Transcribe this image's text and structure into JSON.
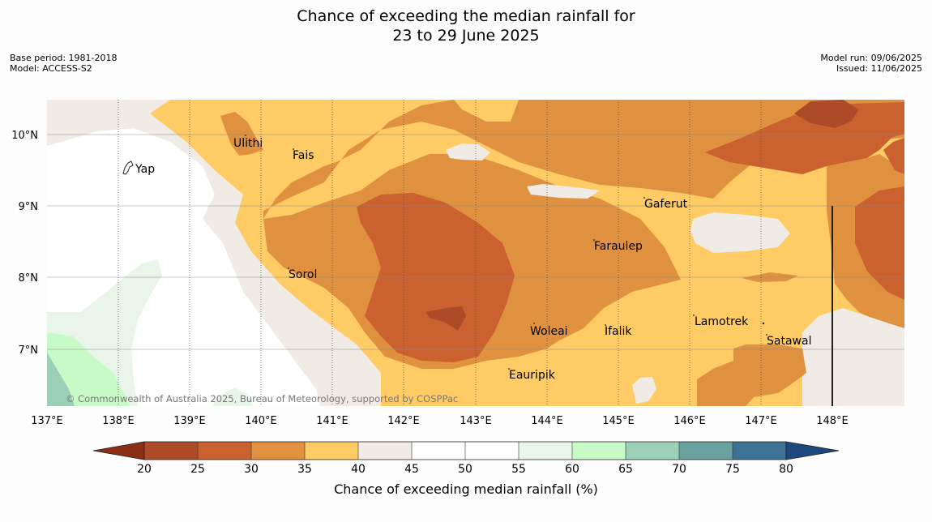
{
  "title_line1": "Chance of exceeding the median rainfall for",
  "title_line2": "23 to 29 June 2025",
  "meta_left": {
    "base_period": "Base period: 1981-2018",
    "model": "Model: ACCESS-S2"
  },
  "meta_right": {
    "model_run": "Model run: 09/06/2025",
    "issued": "Issued: 11/06/2025"
  },
  "map": {
    "lat_labels": [
      "10°N",
      "9°N",
      "8°N",
      "7°N"
    ],
    "lon_labels": [
      "137°E",
      "138°E",
      "139°E",
      "140°E",
      "141°E",
      "142°E",
      "143°E",
      "144°E",
      "145°E",
      "146°E",
      "147°E",
      "148°E"
    ],
    "places": [
      {
        "name": "Yap"
      },
      {
        "name": "Ulithi"
      },
      {
        "name": "Fais"
      },
      {
        "name": "Gaferut"
      },
      {
        "name": "Faraulep"
      },
      {
        "name": "Sorol"
      },
      {
        "name": "Woleai"
      },
      {
        "name": "Ifalik"
      },
      {
        "name": "Lamotrek"
      },
      {
        "name": "Satawal"
      },
      {
        "name": "Eauripik"
      }
    ],
    "copyright": "© Commonwealth of Australia 2025, Bureau of Meteorology, supported by COSPPac"
  },
  "colorbar": {
    "ticks": [
      "20",
      "25",
      "30",
      "35",
      "40",
      "45",
      "50",
      "55",
      "60",
      "65",
      "70",
      "75",
      "80"
    ],
    "colors": {
      "below_20": "#8c2d16",
      "20_25": "#ad4a27",
      "25_30": "#cb612e",
      "30_35": "#e0913f",
      "35_40": "#fecb65",
      "40_45": "#f0ebe5",
      "45_50": "#ffffff",
      "50_55": "#ffffff",
      "55_60": "#e9f5e9",
      "60_65": "#c8fac8",
      "65_70": "#9bcfb8",
      "70_75": "#6ba29f",
      "75_80": "#3d7294",
      "above_80": "#1c4a7e"
    },
    "label": "Chance of exceeding median rainfall (%)"
  }
}
